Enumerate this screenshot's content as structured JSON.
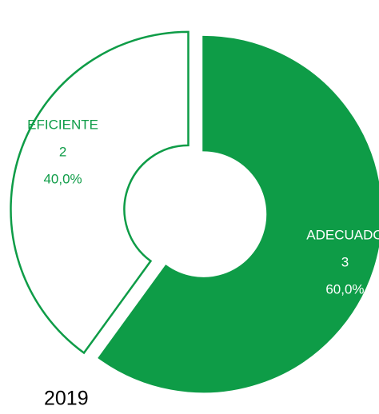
{
  "chart_data": {
    "type": "donut",
    "title": "2019",
    "categories": [
      "EFICIENTE",
      "ADECUADO"
    ],
    "values": [
      2,
      3
    ],
    "percents": [
      40,
      60
    ],
    "percent_labels": [
      "40,0%",
      "60,0%"
    ],
    "colors": [
      "#ffffff",
      "#0e9c47"
    ],
    "edge_color": "#0e9c47"
  }
}
